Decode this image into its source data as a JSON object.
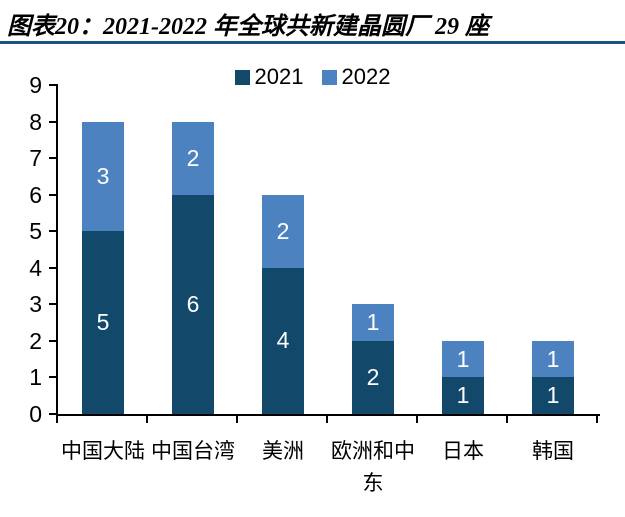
{
  "header": {
    "title": "图表20：2021-2022 年全球共新建晶圆厂 29 座"
  },
  "colors": {
    "rule": "#16567d",
    "axis": "#000000",
    "text": "#000000",
    "value_label": "#ffffff"
  },
  "chart_data": {
    "type": "bar",
    "stacked": true,
    "title": "图表20：2021-2022 年全球共新建晶圆厂 29 座",
    "categories": [
      "中国大陆",
      "中国台湾",
      "美洲",
      "欧洲和中东",
      "日本",
      "韩国"
    ],
    "series": [
      {
        "name": "2021",
        "color": "#12496b",
        "values": [
          5,
          6,
          4,
          2,
          1,
          1
        ]
      },
      {
        "name": "2022",
        "color": "#4d82c1",
        "values": [
          3,
          2,
          2,
          1,
          1,
          1
        ]
      }
    ],
    "ylim": [
      0,
      9
    ],
    "ytick_step": 1,
    "grid": false,
    "legend_position": "top-center",
    "value_labels_shown": true,
    "value_label_color": "#ffffff"
  }
}
